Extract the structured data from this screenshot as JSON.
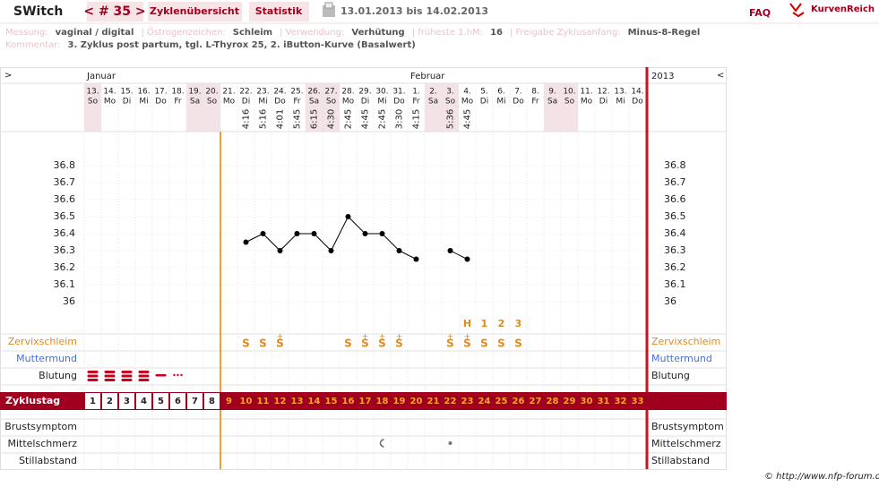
{
  "header": {
    "user": "SWitch",
    "cycle": "< # 35 >",
    "tabs": [
      "Zyklenübersicht",
      "Statistik"
    ],
    "range": "13.01.2013 bis 14.02.2013",
    "faq": "FAQ",
    "brand": "KurvenReich"
  },
  "info": [
    [
      {
        "label": "Messung:",
        "value": "vaginal / digital"
      },
      {
        "label": "| Östrogenzeichen:",
        "value": "Schleim"
      },
      {
        "label": "| Verwendung:",
        "value": "Verhütung"
      },
      {
        "label": "| früheste 1.hM:",
        "value": "16"
      },
      {
        "label": "| Freigabe Zyklusanfang:",
        "value": "Minus-8-Regel"
      }
    ],
    [
      {
        "label": "Kommentar:",
        "value": "3. Zyklus post partum, tgl. L-Thyrox 25, 2. iButton-Kurve (Basalwert)"
      }
    ]
  ],
  "chart": {
    "type": "line",
    "prev": ">",
    "next": "<",
    "year": "2013",
    "months": [
      {
        "name": "Januar",
        "index": 0
      },
      {
        "name": "Februar",
        "index": 19
      }
    ],
    "days": [
      "13.",
      "14.",
      "15.",
      "16.",
      "17.",
      "18.",
      "19.",
      "20.",
      "21.",
      "22.",
      "23.",
      "24.",
      "25.",
      "26.",
      "27.",
      "28.",
      "29.",
      "30.",
      "31.",
      "1.",
      "2.",
      "3.",
      "4.",
      "5.",
      "6.",
      "7.",
      "8.",
      "9.",
      "10.",
      "11.",
      "12.",
      "13.",
      "14."
    ],
    "weekdays": [
      "So",
      "Mo",
      "Di",
      "Mi",
      "Do",
      "Fr",
      "Sa",
      "So",
      "Mo",
      "Di",
      "Mi",
      "Do",
      "Fr",
      "Sa",
      "So",
      "Mo",
      "Di",
      "Mi",
      "Do",
      "Fr",
      "Sa",
      "So",
      "Mo",
      "Di",
      "Mi",
      "Do",
      "Fr",
      "Sa",
      "So",
      "Mo",
      "Di",
      "Mi",
      "Do"
    ],
    "times": [
      null,
      null,
      null,
      null,
      null,
      null,
      null,
      null,
      null,
      "4:16",
      "5:16",
      "4:01",
      "5:45",
      "6:15",
      "4:30",
      "2:45",
      "4:45",
      "2:45",
      "3:30",
      "4:15",
      null,
      "5:36",
      "4:45",
      null,
      null,
      null,
      null,
      null,
      null,
      null,
      null,
      null,
      null
    ],
    "temperatures": [
      null,
      null,
      null,
      null,
      null,
      null,
      null,
      null,
      null,
      36.35,
      36.4,
      36.3,
      36.4,
      36.4,
      36.3,
      36.5,
      36.4,
      36.4,
      36.3,
      36.25,
      null,
      36.3,
      36.25,
      null,
      null,
      null,
      null,
      null,
      null,
      null,
      null,
      null,
      null
    ],
    "ylim": [
      35.85,
      37.0
    ],
    "yticks": [
      36.8,
      36.7,
      36.6,
      36.5,
      36.4,
      36.3,
      36.2,
      36.1,
      36
    ],
    "peak_counts": [
      null,
      null,
      null,
      null,
      null,
      null,
      null,
      null,
      null,
      null,
      null,
      null,
      null,
      null,
      null,
      null,
      null,
      null,
      null,
      null,
      null,
      null,
      "H",
      "1",
      "2",
      "3",
      null,
      null,
      null,
      null,
      null,
      null,
      null
    ],
    "cervix": [
      null,
      null,
      null,
      null,
      null,
      null,
      null,
      null,
      null,
      "S",
      "S",
      "S",
      null,
      null,
      null,
      "S",
      "S",
      "S",
      "S",
      null,
      null,
      "S",
      "S",
      "S",
      "S",
      "S",
      null,
      null,
      null,
      null,
      null,
      null,
      null
    ],
    "cervix_plus": [
      null,
      null,
      null,
      null,
      null,
      null,
      null,
      null,
      null,
      null,
      null,
      "+",
      null,
      null,
      null,
      null,
      "+",
      "+",
      "+",
      null,
      null,
      "+",
      "+",
      null,
      null,
      null,
      null,
      null,
      null,
      null,
      null,
      null,
      null
    ],
    "rows": [
      "Zervixschleim",
      "Muttermund",
      "Blutung"
    ],
    "cycle_day_label": "Zyklustag",
    "cycle_days": [
      1,
      2,
      3,
      4,
      5,
      6,
      7,
      8,
      9,
      10,
      11,
      12,
      13,
      14,
      15,
      16,
      17,
      18,
      19,
      20,
      21,
      22,
      23,
      24,
      25,
      26,
      27,
      28,
      29,
      30,
      31,
      32,
      33
    ],
    "lower_rows": [
      "Brustsymptom",
      "Mittelschmerz",
      "Stillabstand"
    ]
  },
  "footer": "© http://www.nfp-forum.de"
}
